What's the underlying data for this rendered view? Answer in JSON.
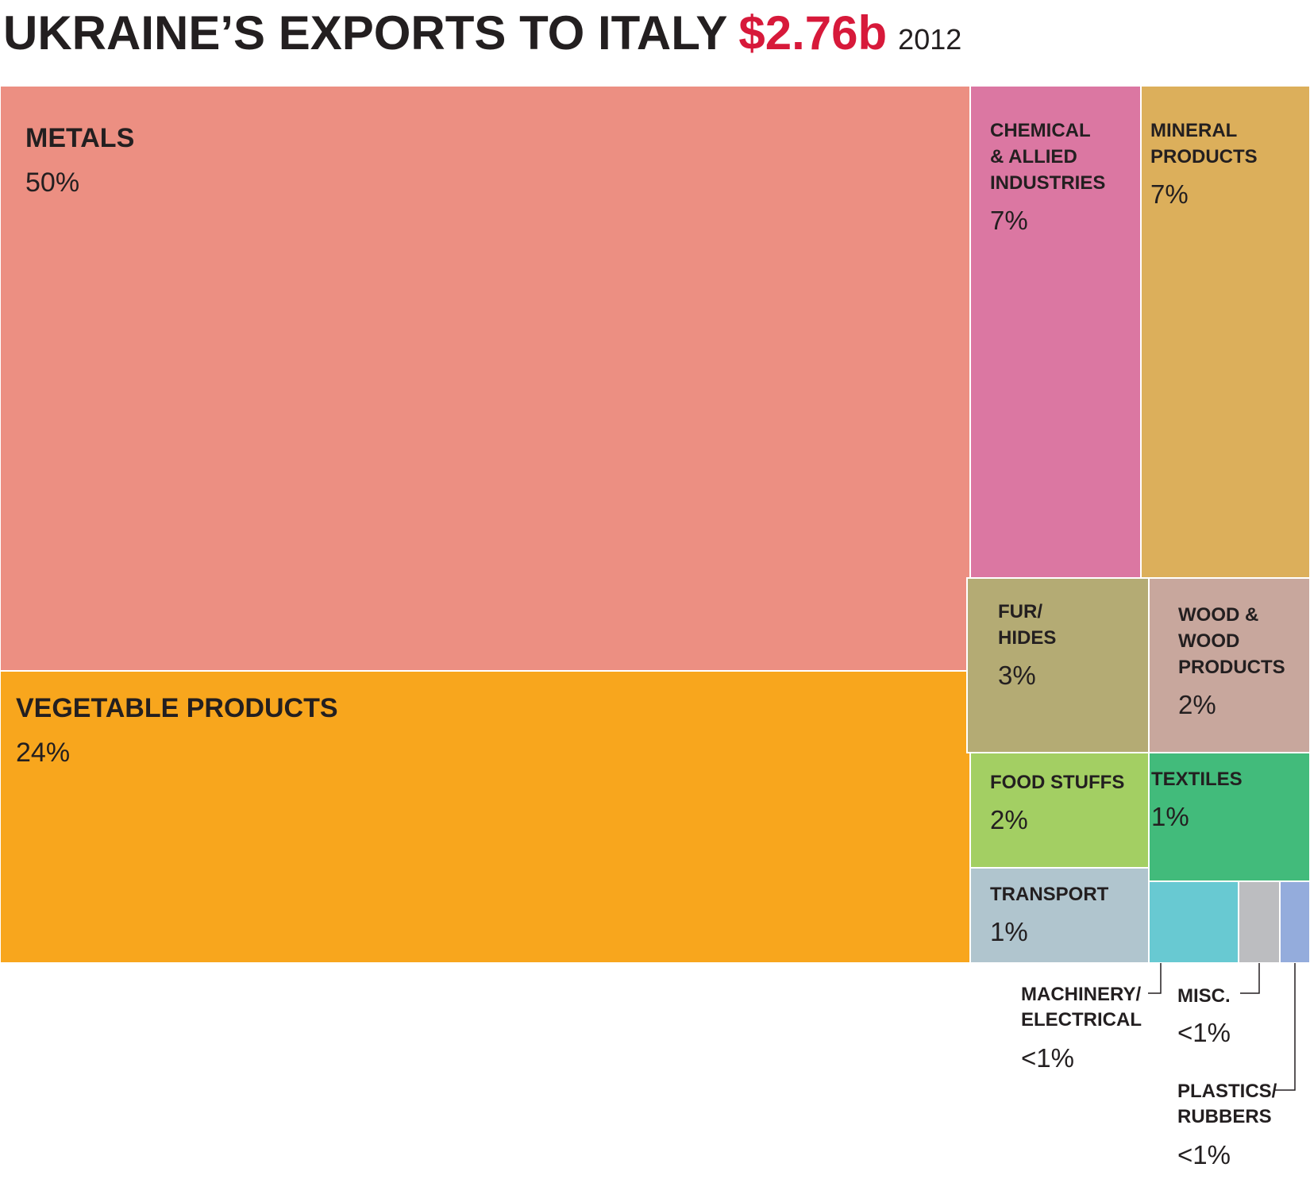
{
  "chart_data": {
    "type": "treemap",
    "title": "UKRAINE’S EXPORTS TO ITALY",
    "total": "$2.76b",
    "year": "2012",
    "title_total_color": "#d7193a",
    "text_color": "#231f20",
    "segments": [
      {
        "label": [
          "METALS"
        ],
        "value_label": "50%",
        "value": 50,
        "color": "#ec8f82"
      },
      {
        "label": [
          "VEGETABLE PRODUCTS"
        ],
        "value_label": "24%",
        "value": 24,
        "color": "#f8a61d"
      },
      {
        "label": [
          "CHEMICAL",
          "& ALLIED",
          "INDUSTRIES"
        ],
        "value_label": "7%",
        "value": 7,
        "color": "#db77a2"
      },
      {
        "label": [
          "MINERAL",
          "PRODUCTS"
        ],
        "value_label": "7%",
        "value": 7,
        "color": "#dcaf5b"
      },
      {
        "label": [
          "FUR/",
          "HIDES"
        ],
        "value_label": "3%",
        "value": 3,
        "color": "#b4ab74"
      },
      {
        "label": [
          "WOOD &",
          "WOOD",
          "PRODUCTS"
        ],
        "value_label": "2%",
        "value": 2,
        "color": "#c8a79d"
      },
      {
        "label": [
          "FOOD STUFFS"
        ],
        "value_label": "2%",
        "value": 2,
        "color": "#a3cf63"
      },
      {
        "label": [
          "TEXTILES"
        ],
        "value_label": "1%",
        "value": 1,
        "color": "#42bb7b"
      },
      {
        "label": [
          "TRANSPORT"
        ],
        "value_label": "1%",
        "value": 1,
        "color": "#b0c5ce"
      },
      {
        "label": [
          "MACHINERY/",
          "ELECTRICAL"
        ],
        "value_label": "<1%",
        "value": 0.6,
        "color": "#68c9d2"
      },
      {
        "label": [
          "MISC."
        ],
        "value_label": "<1%",
        "value": 0.3,
        "color": "#bcbdc0"
      },
      {
        "label": [
          "PLASTICS/",
          "RUBBERS"
        ],
        "value_label": "<1%",
        "value": 0.2,
        "color": "#94acdc"
      }
    ]
  }
}
